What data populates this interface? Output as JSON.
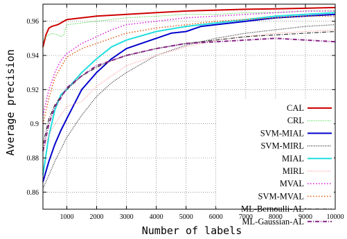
{
  "chart_data": {
    "type": "line",
    "title": "",
    "xlabel": "Number of labels",
    "ylabel": "Average precision",
    "xlim": [
      200,
      10000
    ],
    "ylim": [
      0.85,
      0.97
    ],
    "xticks": [
      1000,
      2000,
      3000,
      4000,
      5000,
      6000,
      7000,
      8000,
      9000,
      10000
    ],
    "yticks": [
      0.86,
      0.88,
      0.9,
      0.92,
      0.94,
      0.96
    ],
    "ytick_labels": [
      "0.86",
      "0.88",
      "0.9",
      "0.92",
      "0.94",
      "0.96"
    ],
    "grid": true,
    "legend_position": "lower-right",
    "series": [
      {
        "name": "CAL",
        "color": "#cc0000",
        "dash": "solid",
        "width": 2,
        "x": [
          200,
          300,
          400,
          500,
          700,
          900,
          1000,
          1500,
          2000,
          2500,
          3000,
          4000,
          5000,
          6000,
          7000,
          8000,
          9000,
          10000
        ],
        "y": [
          0.945,
          0.952,
          0.956,
          0.957,
          0.958,
          0.96,
          0.961,
          0.962,
          0.963,
          0.9635,
          0.964,
          0.965,
          0.966,
          0.9665,
          0.967,
          0.9673,
          0.9676,
          0.968
        ]
      },
      {
        "name": "CRL",
        "color": "#22cc22",
        "dash": "1,1.5",
        "width": 1,
        "x": [
          200,
          300,
          400,
          500,
          700,
          800,
          900,
          1000,
          1500,
          2000,
          3000,
          4000,
          5000,
          6000,
          7000,
          8000,
          9000,
          10000
        ],
        "y": [
          0.948,
          0.951,
          0.952,
          0.953,
          0.952,
          0.951,
          0.952,
          0.958,
          0.959,
          0.96,
          0.962,
          0.963,
          0.964,
          0.964,
          0.965,
          0.965,
          0.966,
          0.966
        ]
      },
      {
        "name": "SVM-MIAL",
        "color": "#0000cc",
        "dash": "solid",
        "width": 2,
        "x": [
          200,
          400,
          600,
          800,
          1000,
          1500,
          2000,
          2500,
          3000,
          4000,
          4500,
          5000,
          5500,
          6000,
          7000,
          8000,
          9000,
          10000
        ],
        "y": [
          0.866,
          0.878,
          0.888,
          0.896,
          0.903,
          0.92,
          0.93,
          0.938,
          0.944,
          0.95,
          0.953,
          0.954,
          0.957,
          0.958,
          0.96,
          0.962,
          0.963,
          0.964
        ]
      },
      {
        "name": "SVM-MIRL",
        "color": "#222222",
        "dash": "1,1.5",
        "width": 1.2,
        "x": [
          200,
          400,
          600,
          800,
          1000,
          1500,
          2000,
          2500,
          3000,
          4000,
          5000,
          6000,
          7000,
          8000,
          9000,
          10000
        ],
        "y": [
          0.862,
          0.87,
          0.878,
          0.885,
          0.892,
          0.905,
          0.916,
          0.924,
          0.93,
          0.94,
          0.946,
          0.95,
          0.953,
          0.955,
          0.957,
          0.958
        ]
      },
      {
        "name": "MIAL",
        "color": "#22dddd",
        "dash": "solid",
        "width": 2,
        "x": [
          200,
          400,
          600,
          800,
          1000,
          1500,
          2000,
          2500,
          3000,
          4000,
          5000,
          6000,
          7000,
          8000,
          9000,
          10000
        ],
        "y": [
          0.87,
          0.893,
          0.908,
          0.917,
          0.92,
          0.93,
          0.938,
          0.945,
          0.949,
          0.954,
          0.957,
          0.959,
          0.961,
          0.963,
          0.964,
          0.965
        ]
      },
      {
        "name": "MIRL",
        "color": "#ff9999",
        "dash": "1,1.5",
        "width": 1.2,
        "x": [
          200,
          500,
          800,
          1000,
          1500,
          2000,
          2500,
          3000,
          4000,
          5000,
          6000,
          7000,
          8000,
          9000,
          10000
        ],
        "y": [
          0.885,
          0.897,
          0.905,
          0.91,
          0.913,
          0.922,
          0.928,
          0.934,
          0.94,
          0.945,
          0.949,
          0.951,
          0.953,
          0.954,
          0.955
        ]
      },
      {
        "name": "MVAL",
        "color": "#dd22dd",
        "dash": "1.5,2.5",
        "width": 1.6,
        "x": [
          200,
          400,
          600,
          800,
          1000,
          1500,
          2000,
          2500,
          3000,
          4000,
          5000,
          6000,
          7000,
          8000,
          9000,
          10000
        ],
        "y": [
          0.905,
          0.92,
          0.93,
          0.937,
          0.941,
          0.947,
          0.951,
          0.955,
          0.958,
          0.96,
          0.962,
          0.963,
          0.964,
          0.965,
          0.966,
          0.966
        ]
      },
      {
        "name": "SVM-MVAL",
        "color": "#e0601a",
        "dash": "1.5,2.5",
        "width": 1.6,
        "x": [
          200,
          400,
          600,
          800,
          1000,
          1500,
          2000,
          2500,
          3000,
          4000,
          5000,
          6000,
          7000,
          8000,
          9000,
          10000
        ],
        "y": [
          0.9,
          0.915,
          0.927,
          0.933,
          0.939,
          0.944,
          0.947,
          0.95,
          0.953,
          0.956,
          0.958,
          0.96,
          0.961,
          0.962,
          0.963,
          0.963
        ]
      },
      {
        "name": "ML-Bernoulli-AL",
        "color": "#333333",
        "dash": "6,2,1,2",
        "width": 1.2,
        "x": [
          200,
          400,
          600,
          800,
          1000,
          1500,
          2000,
          2500,
          3000,
          4000,
          5000,
          6000,
          7000,
          8000,
          9000,
          10000
        ],
        "y": [
          0.888,
          0.903,
          0.911,
          0.916,
          0.92,
          0.928,
          0.933,
          0.937,
          0.94,
          0.944,
          0.947,
          0.949,
          0.951,
          0.952,
          0.953,
          0.954
        ]
      },
      {
        "name": "ML-Gaussian-AL",
        "color": "#882288",
        "dash": "6,2,1,2",
        "width": 2,
        "x": [
          200,
          400,
          600,
          800,
          1000,
          1500,
          2000,
          2500,
          3000,
          4000,
          5000,
          6000,
          7000,
          8000,
          9000,
          10000
        ],
        "y": [
          0.884,
          0.9,
          0.91,
          0.915,
          0.921,
          0.928,
          0.934,
          0.937,
          0.94,
          0.944,
          0.947,
          0.948,
          0.949,
          0.95,
          0.949,
          0.948
        ]
      }
    ]
  }
}
